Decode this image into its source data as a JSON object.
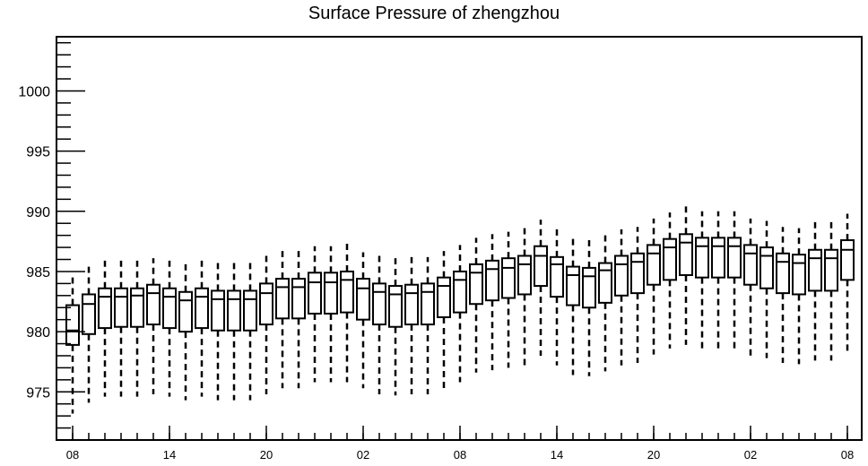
{
  "chart_data": {
    "type": "boxplot",
    "title": "Surface Pressure of zhengzhou",
    "xlabel": "",
    "ylabel": "",
    "ylim": [
      971,
      1004.5
    ],
    "y_ticks": [
      975,
      980,
      985,
      990,
      995,
      1000
    ],
    "y_tick_labels": [
      "975",
      "980",
      "985",
      "990",
      "995",
      "1000"
    ],
    "x_tick_labels": [
      "08",
      "14",
      "20",
      "02",
      "08",
      "14",
      "20",
      "02",
      "08"
    ],
    "x_tick_positions": [
      0,
      6,
      12,
      18,
      24,
      30,
      36,
      42,
      48
    ],
    "grid": false,
    "boxes": [
      {
        "x": 0,
        "whislo": 973.2,
        "q1": 978.9,
        "med": 980.1,
        "q3": 982.2,
        "whishi": 984.5
      },
      {
        "x": 1,
        "whislo": 974.1,
        "q1": 979.8,
        "med": 982.3,
        "q3": 983.1,
        "whishi": 985.4
      },
      {
        "x": 2,
        "whislo": 974.6,
        "q1": 980.3,
        "med": 982.9,
        "q3": 983.6,
        "whishi": 985.9
      },
      {
        "x": 3,
        "whislo": 974.6,
        "q1": 980.4,
        "med": 982.9,
        "q3": 983.6,
        "whishi": 985.9
      },
      {
        "x": 4,
        "whislo": 974.6,
        "q1": 980.4,
        "med": 983.0,
        "q3": 983.6,
        "whishi": 985.9
      },
      {
        "x": 5,
        "whislo": 974.8,
        "q1": 980.6,
        "med": 983.2,
        "q3": 983.9,
        "whishi": 986.1
      },
      {
        "x": 6,
        "whislo": 974.6,
        "q1": 980.3,
        "med": 982.9,
        "q3": 983.6,
        "whishi": 985.9
      },
      {
        "x": 7,
        "whislo": 974.3,
        "q1": 980.0,
        "med": 982.6,
        "q3": 983.3,
        "whishi": 985.6
      },
      {
        "x": 8,
        "whislo": 974.6,
        "q1": 980.3,
        "med": 982.9,
        "q3": 983.6,
        "whishi": 985.9
      },
      {
        "x": 9,
        "whislo": 974.3,
        "q1": 980.1,
        "med": 982.7,
        "q3": 983.4,
        "whishi": 985.7
      },
      {
        "x": 10,
        "whislo": 974.3,
        "q1": 980.1,
        "med": 982.7,
        "q3": 983.4,
        "whishi": 985.7
      },
      {
        "x": 11,
        "whislo": 974.3,
        "q1": 980.1,
        "med": 982.7,
        "q3": 983.4,
        "whishi": 985.7
      },
      {
        "x": 12,
        "whislo": 974.8,
        "q1": 980.6,
        "med": 983.2,
        "q3": 984.0,
        "whishi": 986.3
      },
      {
        "x": 13,
        "whislo": 975.3,
        "q1": 981.1,
        "med": 983.7,
        "q3": 984.4,
        "whishi": 986.7
      },
      {
        "x": 14,
        "whislo": 975.3,
        "q1": 981.1,
        "med": 983.7,
        "q3": 984.4,
        "whishi": 986.7
      },
      {
        "x": 15,
        "whislo": 975.8,
        "q1": 981.5,
        "med": 984.1,
        "q3": 984.9,
        "whishi": 987.1
      },
      {
        "x": 16,
        "whislo": 975.8,
        "q1": 981.5,
        "med": 984.1,
        "q3": 984.9,
        "whishi": 987.1
      },
      {
        "x": 17,
        "whislo": 975.8,
        "q1": 981.6,
        "med": 984.3,
        "q3": 985.0,
        "whishi": 987.3
      },
      {
        "x": 18,
        "whislo": 975.3,
        "q1": 981.0,
        "med": 983.6,
        "q3": 984.4,
        "whishi": 986.6
      },
      {
        "x": 19,
        "whislo": 974.8,
        "q1": 980.6,
        "med": 983.3,
        "q3": 984.0,
        "whishi": 986.3
      },
      {
        "x": 20,
        "whislo": 974.7,
        "q1": 980.4,
        "med": 983.1,
        "q3": 983.8,
        "whishi": 986.1
      },
      {
        "x": 21,
        "whislo": 974.8,
        "q1": 980.6,
        "med": 983.2,
        "q3": 983.9,
        "whishi": 986.2
      },
      {
        "x": 22,
        "whislo": 974.8,
        "q1": 980.6,
        "med": 983.3,
        "q3": 984.0,
        "whishi": 986.2
      },
      {
        "x": 23,
        "whislo": 975.3,
        "q1": 981.2,
        "med": 983.8,
        "q3": 984.5,
        "whishi": 986.7
      },
      {
        "x": 24,
        "whislo": 975.8,
        "q1": 981.6,
        "med": 984.3,
        "q3": 985.0,
        "whishi": 987.2
      },
      {
        "x": 25,
        "whislo": 976.6,
        "q1": 982.3,
        "med": 984.9,
        "q3": 985.6,
        "whishi": 987.8
      },
      {
        "x": 26,
        "whislo": 976.8,
        "q1": 982.6,
        "med": 985.2,
        "q3": 985.9,
        "whishi": 988.1
      },
      {
        "x": 27,
        "whislo": 977.0,
        "q1": 982.8,
        "med": 985.3,
        "q3": 986.1,
        "whishi": 988.3
      },
      {
        "x": 28,
        "whislo": 977.2,
        "q1": 983.1,
        "med": 985.6,
        "q3": 986.3,
        "whishi": 988.6
      },
      {
        "x": 29,
        "whislo": 978.0,
        "q1": 983.8,
        "med": 986.3,
        "q3": 987.1,
        "whishi": 989.3
      },
      {
        "x": 30,
        "whislo": 977.2,
        "q1": 982.9,
        "med": 985.6,
        "q3": 986.2,
        "whishi": 988.5
      },
      {
        "x": 31,
        "whislo": 976.4,
        "q1": 982.2,
        "med": 984.7,
        "q3": 985.4,
        "whishi": 987.7
      },
      {
        "x": 32,
        "whislo": 976.3,
        "q1": 982.0,
        "med": 984.6,
        "q3": 985.3,
        "whishi": 987.6
      },
      {
        "x": 33,
        "whislo": 976.7,
        "q1": 982.4,
        "med": 985.1,
        "q3": 985.7,
        "whishi": 988.0
      },
      {
        "x": 34,
        "whislo": 977.2,
        "q1": 983.0,
        "med": 985.6,
        "q3": 986.3,
        "whishi": 988.5
      },
      {
        "x": 35,
        "whislo": 977.4,
        "q1": 983.2,
        "med": 985.8,
        "q3": 986.5,
        "whishi": 988.7
      },
      {
        "x": 36,
        "whislo": 978.1,
        "q1": 983.9,
        "med": 986.5,
        "q3": 987.2,
        "whishi": 989.4
      },
      {
        "x": 37,
        "whislo": 978.6,
        "q1": 984.3,
        "med": 987.0,
        "q3": 987.7,
        "whishi": 989.9
      },
      {
        "x": 38,
        "whislo": 978.9,
        "q1": 984.7,
        "med": 987.4,
        "q3": 988.1,
        "whishi": 990.4
      },
      {
        "x": 39,
        "whislo": 978.6,
        "q1": 984.5,
        "med": 987.1,
        "q3": 987.8,
        "whishi": 990.0
      },
      {
        "x": 40,
        "whislo": 978.6,
        "q1": 984.5,
        "med": 987.1,
        "q3": 987.8,
        "whishi": 990.0
      },
      {
        "x": 41,
        "whislo": 978.6,
        "q1": 984.5,
        "med": 987.1,
        "q3": 987.8,
        "whishi": 990.0
      },
      {
        "x": 42,
        "whislo": 978.0,
        "q1": 983.9,
        "med": 986.5,
        "q3": 987.2,
        "whishi": 989.4
      },
      {
        "x": 43,
        "whislo": 977.8,
        "q1": 983.6,
        "med": 986.3,
        "q3": 987.0,
        "whishi": 989.2
      },
      {
        "x": 44,
        "whislo": 977.4,
        "q1": 983.2,
        "med": 985.8,
        "q3": 986.5,
        "whishi": 988.7
      },
      {
        "x": 45,
        "whislo": 977.3,
        "q1": 983.1,
        "med": 985.7,
        "q3": 986.4,
        "whishi": 988.6
      },
      {
        "x": 46,
        "whislo": 977.6,
        "q1": 983.4,
        "med": 986.1,
        "q3": 986.8,
        "whishi": 989.1
      },
      {
        "x": 47,
        "whislo": 977.6,
        "q1": 983.4,
        "med": 986.1,
        "q3": 986.8,
        "whishi": 989.1
      },
      {
        "x": 48,
        "whislo": 978.4,
        "q1": 984.3,
        "med": 986.8,
        "q3": 987.6,
        "whishi": 989.8
      }
    ]
  }
}
